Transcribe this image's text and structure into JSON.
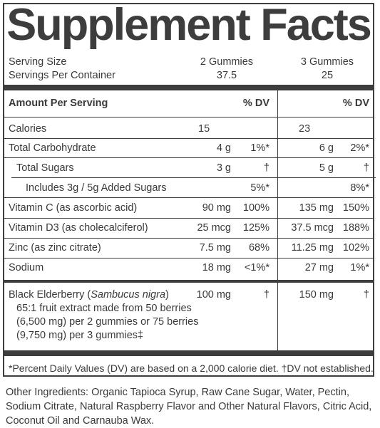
{
  "title": "Supplement Facts",
  "serving": {
    "size_label": "Serving Size",
    "size_col1": "2 Gummies",
    "size_col2": "3 Gummies",
    "per_container_label": "Servings Per Container",
    "per_container_col1": "37.5",
    "per_container_col2": "25"
  },
  "header": {
    "amount_label": "Amount Per Serving",
    "dv_col1": "% DV",
    "dv_col2": "% DV"
  },
  "rows": [
    {
      "name": "Calories",
      "amt1": "15",
      "dv1": "",
      "amt2": "23",
      "dv2": ""
    },
    {
      "name": "Total Carbohydrate",
      "amt1": "4 g",
      "dv1": "1%*",
      "amt2": "6 g",
      "dv2": "2%*"
    },
    {
      "name": "Total Sugars",
      "amt1": "3 g",
      "dv1": "†",
      "amt2": "5 g",
      "dv2": "†"
    },
    {
      "name": "Includes 3g / 5g Added Sugars",
      "amt1": "",
      "dv1": "5%*",
      "amt2": "",
      "dv2": "8%*"
    },
    {
      "name": "Vitamin C (as ascorbic acid)",
      "amt1": "90 mg",
      "dv1": "100%",
      "amt2": "135 mg",
      "dv2": "150%"
    },
    {
      "name": "Vitamin D3 (as cholecalciferol)",
      "amt1": "25 mcg",
      "dv1": "125%",
      "amt2": "37.5 mcg",
      "dv2": "188%"
    },
    {
      "name": "Zinc (as zinc citrate)",
      "amt1": "7.5 mg",
      "dv1": "68%",
      "amt2": "11.25 mg",
      "dv2": "102%"
    },
    {
      "name": "Sodium",
      "amt1": "18 mg",
      "dv1": "<1%*",
      "amt2": "27 mg",
      "dv2": "1%*"
    }
  ],
  "elderberry": {
    "name_prefix": "Black Elderberry (",
    "name_italic": "Sambucus nigra",
    "name_suffix": ")",
    "amt1": "100 mg",
    "dv1": "†",
    "amt2": "150 mg",
    "dv2": "†",
    "desc_lines": [
      "65:1 fruit extract made from 50 berries",
      "(6,500 mg) per 2 gummies or 75 berries",
      "(9,750 mg) per 3 gummies‡"
    ]
  },
  "footnote": "*Percent Daily Values (DV) are based on a 2,000 calorie diet. †DV not established.",
  "other_ingredients": "Other Ingredients: Organic Tapioca Syrup, Raw Cane Sugar, Water, Pectin, Sodium Citrate, Natural Raspberry Flavor and Other Natural Flavors, Citric Acid, Coconut Oil and Carnauba Wax."
}
